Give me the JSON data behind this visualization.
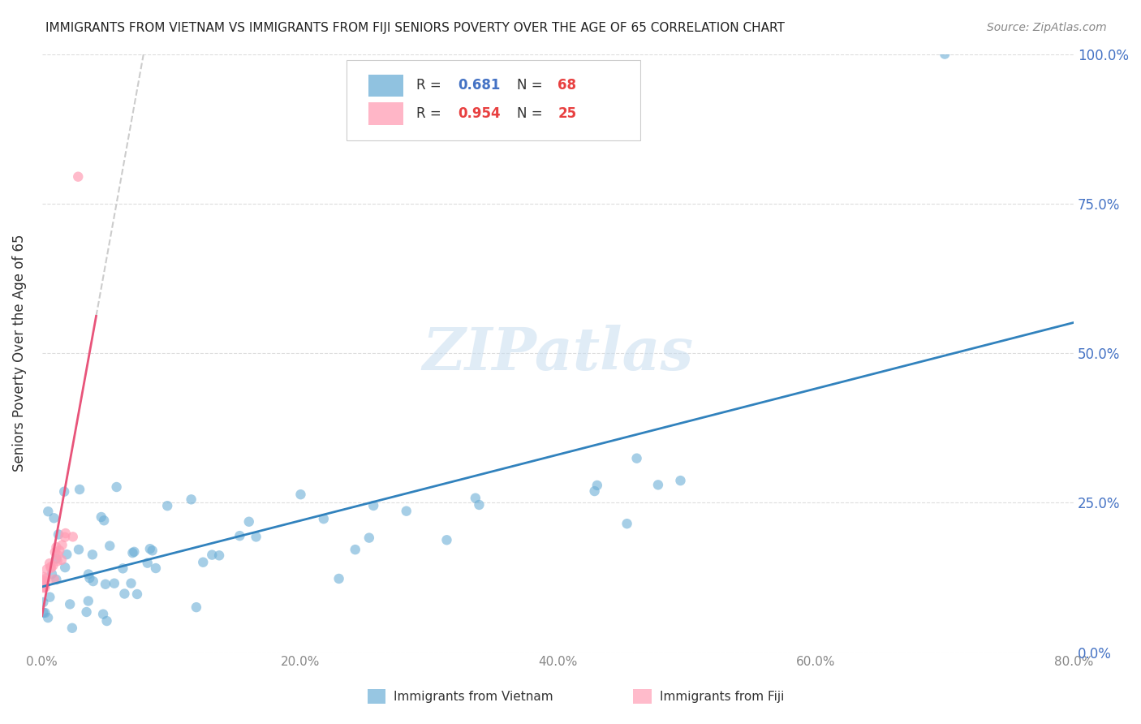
{
  "title": "IMMIGRANTS FROM VIETNAM VS IMMIGRANTS FROM FIJI SENIORS POVERTY OVER THE AGE OF 65 CORRELATION CHART",
  "source": "Source: ZipAtlas.com",
  "ylabel": "Seniors Poverty Over the Age of 65",
  "xlabel_ticks": [
    "0.0%",
    "20.0%",
    "40.0%",
    "60.0%",
    "80.0%"
  ],
  "ylabel_ticks": [
    "0.0%",
    "25.0%",
    "50.0%",
    "75.0%",
    "100.0%"
  ],
  "xlim": [
    0.0,
    0.8
  ],
  "ylim": [
    0.0,
    1.0
  ],
  "ytick_positions": [
    0.0,
    0.25,
    0.5,
    0.75,
    1.0
  ],
  "xtick_positions": [
    0.0,
    0.2,
    0.4,
    0.6,
    0.8
  ],
  "watermark": "ZIPatlas",
  "legend_vietnam": "Immigrants from Vietnam",
  "legend_fiji": "Immigrants from Fiji",
  "R_vietnam": 0.681,
  "N_vietnam": 68,
  "R_fiji": 0.954,
  "N_fiji": 25,
  "color_vietnam": "#6baed6",
  "color_fiji": "#ff9eb5",
  "line_color_vietnam": "#3182bd",
  "line_color_fiji": "#e8547a",
  "background_color": "#ffffff"
}
